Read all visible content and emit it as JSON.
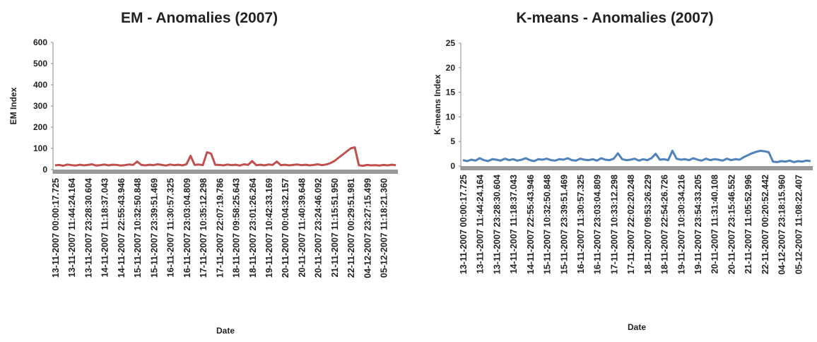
{
  "chart_data": [
    {
      "type": "line",
      "title": "EM - Anomalies (2007)",
      "x_label": "Date",
      "y_label": "EM  Index",
      "ylim": [
        0,
        600
      ],
      "yticks": [
        0,
        100,
        200,
        300,
        400,
        500,
        600
      ],
      "categories": [
        "13-11-2007 00:00:17.725",
        null,
        null,
        null,
        "13-11-2007 11:44:24.164",
        null,
        null,
        null,
        "13-11-2007 23:28:30.604",
        null,
        null,
        null,
        "14-11-2007 11:18:37.043",
        null,
        null,
        null,
        "14-11-2007 22:55:43.946",
        null,
        null,
        null,
        "15-11-2007 10:32:50.848",
        null,
        null,
        null,
        "15-11-2007 23:39:51.469",
        null,
        null,
        null,
        "16-11-2007 11:30:57.325",
        null,
        null,
        null,
        "16-11-2007 23:03:04.809",
        null,
        null,
        null,
        "17-11-2007 10:35:12.298",
        null,
        null,
        null,
        "17-11-2007 22:07:19.786",
        null,
        null,
        null,
        "18-11-2007 09:58:25.643",
        null,
        null,
        null,
        "18-11-2007 23:01:26.264",
        null,
        null,
        null,
        "19-11-2007 10:42:33.169",
        null,
        null,
        null,
        "20-11-2007 00:04:32.157",
        null,
        null,
        null,
        "20-11-2007 11:40:39.648",
        null,
        null,
        null,
        "20-11-2007 23:24:46.092",
        null,
        null,
        null,
        "21-11-2007 11:15:51.950",
        null,
        null,
        null,
        "22-11-2007 00:29:51.981",
        null,
        null,
        null,
        "04-12-2007 23:27:15.499",
        null,
        null,
        null,
        "05-12-2007 11:18:21.360",
        null,
        null,
        null
      ],
      "series": [
        {
          "color": "#c0504d",
          "values": [
            20,
            22,
            18,
            24,
            21,
            19,
            23,
            20,
            22,
            25,
            19,
            21,
            24,
            20,
            23,
            22,
            19,
            21,
            24,
            22,
            38,
            22,
            20,
            23,
            21,
            25,
            22,
            19,
            24,
            21,
            23,
            20,
            25,
            65,
            22,
            24,
            21,
            82,
            75,
            23,
            22,
            20,
            24,
            21,
            23,
            19,
            25,
            22,
            40,
            21,
            23,
            20,
            24,
            22,
            38,
            21,
            23,
            20,
            22,
            24,
            21,
            23,
            20,
            22,
            25,
            21,
            24,
            30,
            40,
            55,
            70,
            85,
            100,
            105,
            20,
            18,
            22,
            20,
            21,
            19,
            22,
            20,
            23,
            21
          ]
        }
      ]
    },
    {
      "type": "line",
      "title": "K-means - Anomalies (2007)",
      "x_label": "Date",
      "y_label": "K-means  Index",
      "ylim": [
        0,
        25
      ],
      "yticks": [
        0,
        5,
        10,
        15,
        20,
        25
      ],
      "categories": [
        "13-11-2007 00:00:17.725",
        null,
        null,
        null,
        "13-11-2007 11:44:24.164",
        null,
        null,
        null,
        "13-11-2007 23:28:30.604",
        null,
        null,
        null,
        "14-11-2007 11:18:37.043",
        null,
        null,
        null,
        "14-11-2007 22:55:43.946",
        null,
        null,
        null,
        "15-11-2007 10:32:50.848",
        null,
        null,
        null,
        "15-11-2007 23:39:51.469",
        null,
        null,
        null,
        "16-11-2007 11:30:57.325",
        null,
        null,
        null,
        "16-11-2007 23:03:04.809",
        null,
        null,
        null,
        "17-11-2007 10:33:12.298",
        null,
        null,
        null,
        "17-11-2007 22:02:20.248",
        null,
        null,
        null,
        "18-11-2007 09:53:26.229",
        null,
        null,
        null,
        "18-11-2007 22:54:26.726",
        null,
        null,
        null,
        "19-11-2007 10:30:34.216",
        null,
        null,
        null,
        "19-11-2007 23:54:33.205",
        null,
        null,
        null,
        "20-11-2007 11:31:40.108",
        null,
        null,
        null,
        "20-11-2007 23:15:46.552",
        null,
        null,
        null,
        "21-11-2007 11:05:52.996",
        null,
        null,
        null,
        "22-11-2007 00:20:52.442",
        null,
        null,
        null,
        "04-12-2007 23:18:15.960",
        null,
        null,
        null,
        "05-12-2007 11:08:22.407",
        null,
        null,
        null
      ],
      "series": [
        {
          "color": "#4f81bd",
          "values": [
            1.2,
            1.0,
            1.3,
            1.1,
            1.6,
            1.2,
            1.0,
            1.4,
            1.3,
            1.1,
            1.5,
            1.2,
            1.4,
            1.1,
            1.3,
            1.6,
            1.2,
            1.0,
            1.4,
            1.3,
            1.5,
            1.2,
            1.1,
            1.4,
            1.3,
            1.6,
            1.2,
            1.1,
            1.5,
            1.3,
            1.2,
            1.4,
            1.1,
            1.6,
            1.3,
            1.2,
            1.5,
            2.6,
            1.4,
            1.2,
            1.3,
            1.5,
            1.1,
            1.4,
            1.2,
            1.6,
            2.5,
            1.3,
            1.4,
            1.2,
            3.1,
            1.5,
            1.3,
            1.4,
            1.2,
            1.6,
            1.3,
            1.1,
            1.5,
            1.2,
            1.4,
            1.3,
            1.1,
            1.5,
            1.2,
            1.4,
            1.3,
            1.8,
            2.2,
            2.6,
            2.9,
            3.1,
            3.0,
            2.8,
            0.9,
            0.8,
            1.0,
            0.9,
            1.1,
            0.8,
            1.0,
            0.9,
            1.1,
            1.0
          ]
        }
      ]
    }
  ]
}
